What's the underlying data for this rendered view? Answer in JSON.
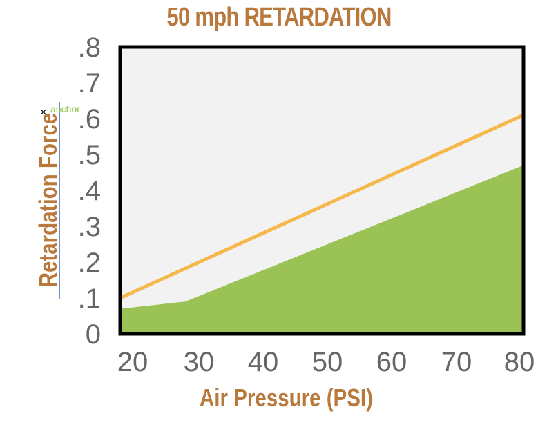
{
  "chart_data": {
    "type": "area",
    "title": "50 mph RETARDATION",
    "xlabel": "Air Pressure (PSI)",
    "ylabel": "Retardation Force",
    "x_ticks": [
      "20",
      "30",
      "40",
      "50",
      "60",
      "70",
      "80"
    ],
    "y_ticks": [
      "0",
      ".1",
      ".2",
      ".3",
      ".4",
      ".5",
      ".6",
      ".7",
      ".8"
    ],
    "xlim": [
      18,
      80
    ],
    "ylim": [
      0,
      0.8
    ],
    "series": [
      {
        "kind": "area",
        "color": "#9bc254",
        "x": [
          18,
          28,
          80
        ],
        "y": [
          0.07,
          0.09,
          0.47
        ]
      },
      {
        "kind": "line",
        "color": "#f5b84a",
        "x": [
          18,
          80
        ],
        "y": [
          0.1,
          0.61
        ]
      }
    ],
    "plot_background": "#f2f2f2",
    "grid": false,
    "legend": "none"
  },
  "annotation": {
    "marker": "×",
    "text": "anchor"
  },
  "colors": {
    "label": "#b9783c",
    "tick": "#666666",
    "frame": "#000000"
  }
}
